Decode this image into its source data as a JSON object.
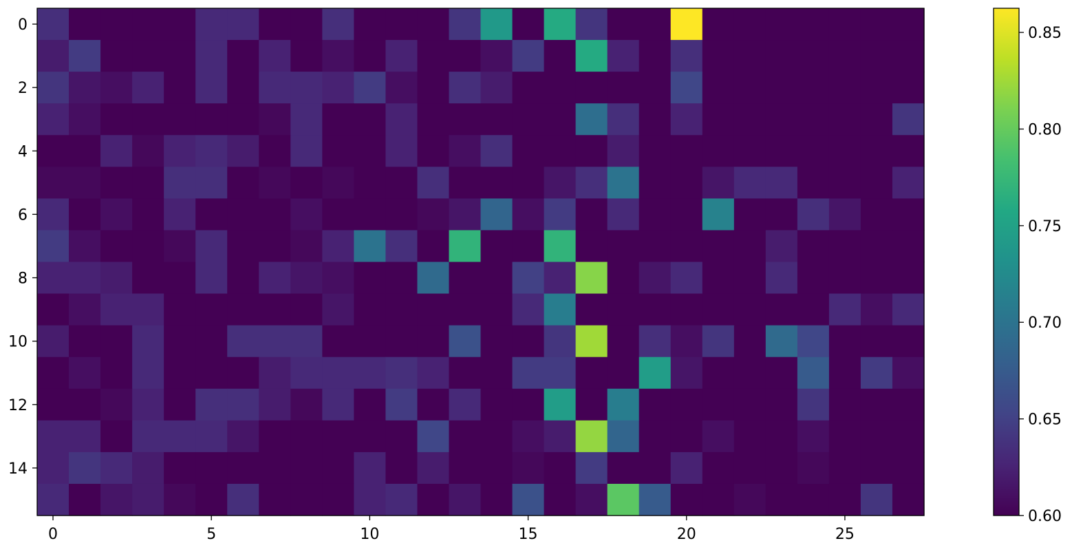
{
  "chart_data": {
    "type": "heatmap",
    "colormap": "viridis",
    "n_rows": 16,
    "n_cols": 28,
    "vmin": 0.6,
    "vmax": 0.8625,
    "x_ticks": [
      0,
      5,
      10,
      15,
      20,
      25
    ],
    "x_tick_labels": [
      "0",
      "5",
      "10",
      "15",
      "20",
      "25"
    ],
    "y_ticks": [
      0,
      2,
      4,
      6,
      8,
      10,
      12,
      14
    ],
    "y_tick_labels": [
      "0",
      "2",
      "4",
      "6",
      "8",
      "10",
      "12",
      "14"
    ],
    "colorbar_ticks": [
      0.6,
      0.65,
      0.7,
      0.75,
      0.8,
      0.85
    ],
    "colorbar_tick_labels": [
      "0.60",
      "0.65",
      "0.70",
      "0.75",
      "0.80",
      "0.85"
    ],
    "values": [
      [
        0.635,
        0.6,
        0.6,
        0.6,
        0.6,
        0.63,
        0.63,
        0.6,
        0.6,
        0.635,
        0.6,
        0.6,
        0.6,
        0.64,
        0.74,
        0.6,
        0.76,
        0.64,
        0.6,
        0.6,
        0.8625,
        0.6,
        0.6,
        0.6,
        0.6,
        0.6,
        0.6,
        0.6
      ],
      [
        0.62,
        0.645,
        0.6,
        0.6,
        0.6,
        0.63,
        0.6,
        0.625,
        0.6,
        0.61,
        0.6,
        0.625,
        0.6,
        0.6,
        0.61,
        0.645,
        0.6,
        0.76,
        0.625,
        0.6,
        0.635,
        0.6,
        0.6,
        0.6,
        0.6,
        0.6,
        0.6,
        0.6
      ],
      [
        0.64,
        0.615,
        0.61,
        0.625,
        0.6,
        0.63,
        0.6,
        0.63,
        0.63,
        0.625,
        0.645,
        0.61,
        0.6,
        0.635,
        0.62,
        0.6,
        0.6,
        0.6,
        0.6,
        0.6,
        0.655,
        0.6,
        0.6,
        0.6,
        0.6,
        0.6,
        0.6,
        0.6
      ],
      [
        0.625,
        0.61,
        0.6,
        0.6,
        0.6,
        0.6,
        0.6,
        0.605,
        0.63,
        0.6,
        0.6,
        0.625,
        0.6,
        0.6,
        0.6,
        0.6,
        0.6,
        0.695,
        0.635,
        0.6,
        0.625,
        0.6,
        0.6,
        0.6,
        0.6,
        0.6,
        0.6,
        0.64
      ],
      [
        0.6,
        0.6,
        0.625,
        0.605,
        0.625,
        0.63,
        0.62,
        0.6,
        0.63,
        0.6,
        0.6,
        0.625,
        0.6,
        0.61,
        0.635,
        0.6,
        0.6,
        0.6,
        0.62,
        0.6,
        0.6,
        0.6,
        0.6,
        0.6,
        0.6,
        0.6,
        0.6,
        0.6
      ],
      [
        0.605,
        0.605,
        0.6,
        0.6,
        0.635,
        0.635,
        0.6,
        0.605,
        0.6,
        0.605,
        0.6,
        0.6,
        0.635,
        0.6,
        0.6,
        0.6,
        0.615,
        0.635,
        0.7,
        0.6,
        0.6,
        0.615,
        0.63,
        0.63,
        0.6,
        0.6,
        0.6,
        0.625
      ],
      [
        0.63,
        0.6,
        0.61,
        0.6,
        0.625,
        0.6,
        0.6,
        0.6,
        0.61,
        0.6,
        0.6,
        0.6,
        0.605,
        0.615,
        0.685,
        0.61,
        0.645,
        0.6,
        0.63,
        0.6,
        0.6,
        0.715,
        0.6,
        0.6,
        0.635,
        0.615,
        0.6,
        0.6
      ],
      [
        0.645,
        0.61,
        0.6,
        0.6,
        0.605,
        0.63,
        0.6,
        0.6,
        0.605,
        0.625,
        0.7,
        0.635,
        0.6,
        0.77,
        0.6,
        0.6,
        0.77,
        0.6,
        0.6,
        0.6,
        0.6,
        0.6,
        0.6,
        0.62,
        0.6,
        0.6,
        0.6,
        0.6
      ],
      [
        0.625,
        0.625,
        0.62,
        0.6,
        0.6,
        0.63,
        0.6,
        0.625,
        0.615,
        0.61,
        0.6,
        0.6,
        0.69,
        0.6,
        0.6,
        0.65,
        0.625,
        0.815,
        0.6,
        0.615,
        0.63,
        0.6,
        0.6,
        0.63,
        0.6,
        0.6,
        0.6,
        0.6
      ],
      [
        0.6,
        0.61,
        0.625,
        0.625,
        0.6,
        0.6,
        0.6,
        0.6,
        0.6,
        0.615,
        0.6,
        0.6,
        0.6,
        0.6,
        0.6,
        0.63,
        0.71,
        0.6,
        0.6,
        0.6,
        0.6,
        0.6,
        0.6,
        0.6,
        0.6,
        0.63,
        0.61,
        0.63
      ],
      [
        0.62,
        0.6,
        0.6,
        0.63,
        0.6,
        0.6,
        0.635,
        0.635,
        0.635,
        0.6,
        0.6,
        0.6,
        0.6,
        0.665,
        0.6,
        0.6,
        0.64,
        0.825,
        0.6,
        0.635,
        0.61,
        0.64,
        0.6,
        0.69,
        0.655,
        0.6,
        0.6,
        0.6
      ],
      [
        0.6,
        0.61,
        0.6,
        0.63,
        0.6,
        0.6,
        0.6,
        0.62,
        0.63,
        0.63,
        0.63,
        0.635,
        0.625,
        0.6,
        0.6,
        0.645,
        0.645,
        0.6,
        0.6,
        0.745,
        0.615,
        0.6,
        0.6,
        0.6,
        0.675,
        0.6,
        0.645,
        0.61
      ],
      [
        0.6,
        0.6,
        0.605,
        0.625,
        0.6,
        0.635,
        0.635,
        0.62,
        0.605,
        0.63,
        0.6,
        0.645,
        0.6,
        0.63,
        0.6,
        0.6,
        0.745,
        0.6,
        0.71,
        0.6,
        0.6,
        0.6,
        0.6,
        0.6,
        0.64,
        0.6,
        0.6,
        0.6
      ],
      [
        0.625,
        0.625,
        0.6,
        0.63,
        0.63,
        0.63,
        0.615,
        0.6,
        0.6,
        0.6,
        0.6,
        0.6,
        0.655,
        0.6,
        0.6,
        0.61,
        0.62,
        0.82,
        0.685,
        0.6,
        0.6,
        0.61,
        0.6,
        0.6,
        0.61,
        0.6,
        0.6,
        0.6
      ],
      [
        0.625,
        0.64,
        0.63,
        0.62,
        0.6,
        0.6,
        0.6,
        0.6,
        0.6,
        0.6,
        0.625,
        0.6,
        0.62,
        0.6,
        0.6,
        0.605,
        0.6,
        0.645,
        0.6,
        0.6,
        0.625,
        0.6,
        0.6,
        0.6,
        0.605,
        0.6,
        0.6,
        0.6
      ],
      [
        0.63,
        0.6,
        0.615,
        0.62,
        0.605,
        0.6,
        0.635,
        0.6,
        0.6,
        0.6,
        0.625,
        0.63,
        0.6,
        0.615,
        0.6,
        0.665,
        0.6,
        0.61,
        0.795,
        0.675,
        0.6,
        0.6,
        0.605,
        0.6,
        0.6,
        0.6,
        0.64,
        0.6
      ]
    ]
  }
}
